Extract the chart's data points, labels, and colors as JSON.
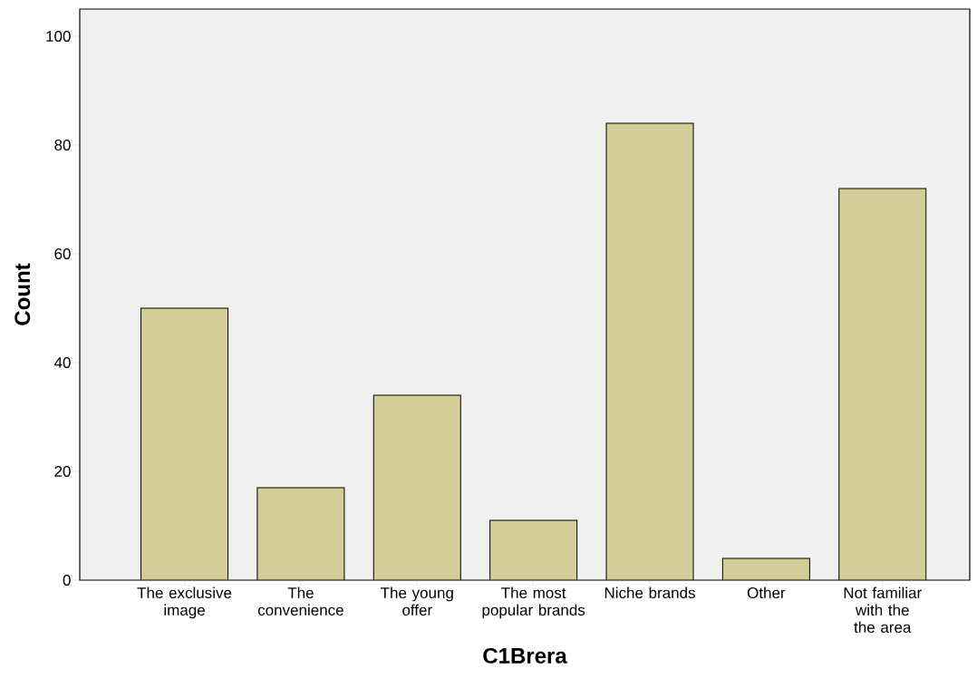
{
  "chart_data": {
    "type": "bar",
    "xlabel": "C1Brera",
    "ylabel": "Count",
    "categories": [
      "The exclusive image",
      "The convenience",
      "The young offer",
      "The most popular brands",
      "Niche brands",
      "Other",
      "Not familiar with the the area"
    ],
    "values": [
      50,
      17,
      34,
      11,
      84,
      4,
      72
    ],
    "color": "#d3ce97",
    "ylim": [
      0,
      105
    ],
    "yticks": [
      0,
      20,
      40,
      60,
      80,
      100
    ],
    "grid": false
  }
}
